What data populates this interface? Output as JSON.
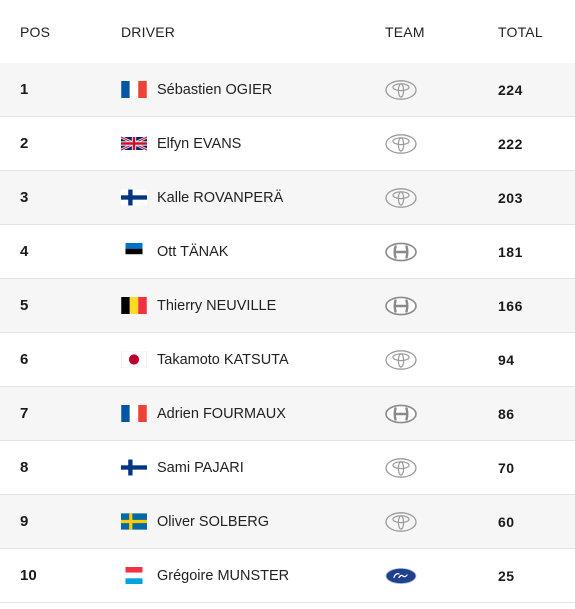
{
  "columns": {
    "pos": "POS",
    "driver": "DRIVER",
    "team": "TEAM",
    "total": "TOTAL"
  },
  "rows": [
    {
      "pos": "1",
      "flag": "france-flag-icon",
      "driver": "Sébastien OGIER",
      "team_logo": "toyota-logo-icon",
      "total": "224"
    },
    {
      "pos": "2",
      "flag": "uk-flag-icon",
      "driver": "Elfyn EVANS",
      "team_logo": "toyota-logo-icon",
      "total": "222"
    },
    {
      "pos": "3",
      "flag": "finland-flag-icon",
      "driver": "Kalle ROVANPERÄ",
      "team_logo": "toyota-logo-icon",
      "total": "203"
    },
    {
      "pos": "4",
      "flag": "estonia-flag-icon",
      "driver": "Ott TÄNAK",
      "team_logo": "hyundai-logo-icon",
      "total": "181"
    },
    {
      "pos": "5",
      "flag": "belgium-flag-icon",
      "driver": "Thierry NEUVILLE",
      "team_logo": "hyundai-logo-icon",
      "total": "166"
    },
    {
      "pos": "6",
      "flag": "japan-flag-icon",
      "driver": "Takamoto KATSUTA",
      "team_logo": "toyota-logo-icon",
      "total": "94"
    },
    {
      "pos": "7",
      "flag": "france-flag-icon",
      "driver": "Adrien FOURMAUX",
      "team_logo": "hyundai-logo-icon",
      "total": "86"
    },
    {
      "pos": "8",
      "flag": "finland-flag-icon",
      "driver": "Sami PAJARI",
      "team_logo": "toyota-logo-icon",
      "total": "70"
    },
    {
      "pos": "9",
      "flag": "sweden-flag-icon",
      "driver": "Oliver SOLBERG",
      "team_logo": "toyota-logo-icon",
      "total": "60"
    },
    {
      "pos": "10",
      "flag": "luxembourg-flag-icon",
      "driver": "Grégoire MUNSTER",
      "team_logo": "ford-logo-icon",
      "total": "25"
    }
  ],
  "colors": {
    "row_alt": "#f6f6f6",
    "divider": "#e3e3e3",
    "text": "#1a1a1a"
  }
}
